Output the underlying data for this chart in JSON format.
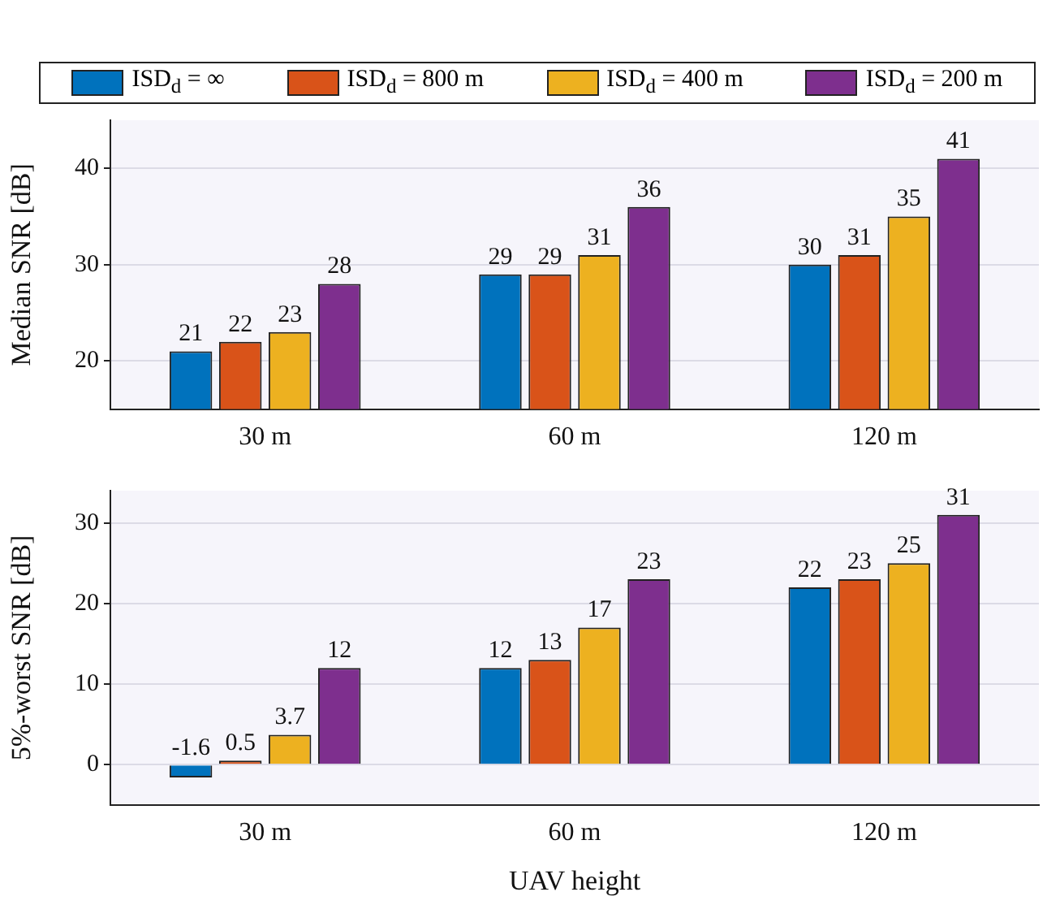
{
  "chart_data": [
    {
      "type": "bar",
      "ylabel": "Median SNR [dB]",
      "categories": [
        "30 m",
        "60 m",
        "120 m"
      ],
      "series": [
        {
          "name": "ISD$_{d}$ = ∞",
          "color": "#0072bd",
          "values": [
            21,
            29,
            30
          ]
        },
        {
          "name": "ISD$_{d}$ = 800 m",
          "color": "#d95319",
          "values": [
            22,
            29,
            31
          ]
        },
        {
          "name": "ISD$_{d}$ = 400 m",
          "color": "#edb120",
          "values": [
            23,
            31,
            35
          ]
        },
        {
          "name": "ISD$_{d}$ = 200 m",
          "color": "#7e2f8e",
          "values": [
            28,
            36,
            41
          ]
        }
      ],
      "ylim": [
        15,
        45
      ],
      "yticks": [
        20,
        30,
        40
      ],
      "grid": "y",
      "legend": "top",
      "data_labels": true
    },
    {
      "type": "bar",
      "xlabel": "UAV height",
      "ylabel": "5%-worst SNR [dB]",
      "categories": [
        "30 m",
        "60 m",
        "120 m"
      ],
      "series": [
        {
          "color": "#0072bd",
          "values": [
            -1.6,
            12,
            22
          ]
        },
        {
          "color": "#d95319",
          "values": [
            0.5,
            13,
            23
          ]
        },
        {
          "color": "#edb120",
          "values": [
            3.7,
            17,
            25
          ]
        },
        {
          "color": "#7e2f8e",
          "values": [
            12,
            23,
            31
          ]
        }
      ],
      "ylim": [
        -5,
        34
      ],
      "yticks": [
        0,
        10,
        20,
        30
      ],
      "grid": "y",
      "data_labels": true
    }
  ]
}
